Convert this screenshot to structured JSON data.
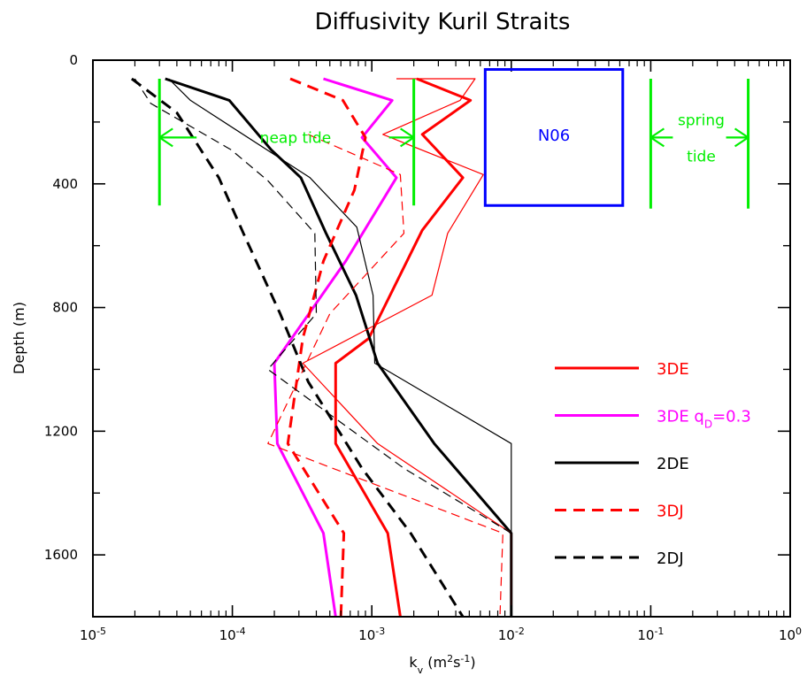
{
  "chart_data": {
    "type": "line",
    "title": "Diffusivity Kuril Straits",
    "xlabel": "k_v (m^2 s^-1)",
    "ylabel": "Depth (m)",
    "xscale": "log",
    "xlim": [
      1e-05,
      1
    ],
    "ylim": [
      0,
      1800
    ],
    "y_inverted": true,
    "x_tick_labels": [
      {
        "value": 1e-05,
        "base": "10",
        "exp": "-5"
      },
      {
        "value": 0.0001,
        "base": "10",
        "exp": "-4"
      },
      {
        "value": 0.001,
        "base": "10",
        "exp": "-3"
      },
      {
        "value": 0.01,
        "base": "10",
        "exp": "-2"
      },
      {
        "value": 0.1,
        "base": "10",
        "exp": "-1"
      },
      {
        "value": 1,
        "base": "10",
        "exp": "0"
      }
    ],
    "y_ticks": [
      0,
      400,
      800,
      1200,
      1600
    ],
    "grid": false,
    "legend_position": "lower-right",
    "series": [
      {
        "name": "3DE",
        "color": "#ff0000",
        "style": "solid",
        "weight": "thick",
        "show_in_legend": true,
        "points": [
          [
            0.0021,
            60
          ],
          [
            0.0051,
            130
          ],
          [
            0.0023,
            240
          ],
          [
            0.0045,
            380
          ],
          [
            0.0023,
            550
          ],
          [
            0.00095,
            900
          ],
          [
            0.00055,
            980
          ],
          [
            0.00055,
            1240
          ],
          [
            0.0013,
            1530
          ],
          [
            0.0016,
            1800
          ]
        ]
      },
      {
        "name": "3DE q_D=0.3",
        "legend_base": "3DE q",
        "legend_sub": "D",
        "legend_tail": "=0.3",
        "color": "#ff00ff",
        "style": "solid",
        "weight": "thick",
        "show_in_legend": true,
        "points": [
          [
            0.00045,
            60
          ],
          [
            0.0014,
            130
          ],
          [
            0.00085,
            250
          ],
          [
            0.0015,
            380
          ],
          [
            0.00065,
            650
          ],
          [
            0.0002,
            980
          ],
          [
            0.00021,
            1240
          ],
          [
            0.00045,
            1530
          ],
          [
            0.00055,
            1800
          ]
        ]
      },
      {
        "name": "2DE",
        "color": "#000000",
        "style": "solid",
        "weight": "thick",
        "show_in_legend": true,
        "points": [
          [
            3.3e-05,
            60
          ],
          [
            9.5e-05,
            130
          ],
          [
            0.00019,
            290
          ],
          [
            0.00031,
            380
          ],
          [
            0.00047,
            560
          ],
          [
            0.00077,
            760
          ],
          [
            0.0011,
            980
          ],
          [
            0.0028,
            1240
          ],
          [
            0.01,
            1530
          ],
          [
            0.01,
            1800
          ]
        ]
      },
      {
        "name": "3DJ",
        "color": "#ff0000",
        "style": "dashed",
        "weight": "thick",
        "show_in_legend": true,
        "points": [
          [
            0.00026,
            60
          ],
          [
            0.00062,
            130
          ],
          [
            0.0009,
            250
          ],
          [
            0.00075,
            420
          ],
          [
            0.00045,
            650
          ],
          [
            0.00032,
            900
          ],
          [
            0.00025,
            1240
          ],
          [
            0.00063,
            1530
          ],
          [
            0.0006,
            1800
          ]
        ]
      },
      {
        "name": "2DJ",
        "color": "#000000",
        "style": "dashed",
        "weight": "thick",
        "show_in_legend": true,
        "points": [
          [
            1.9e-05,
            60
          ],
          [
            4e-05,
            170
          ],
          [
            8e-05,
            380
          ],
          [
            0.00012,
            560
          ],
          [
            0.00022,
            820
          ],
          [
            0.00035,
            1040
          ],
          [
            0.00085,
            1320
          ],
          [
            0.0019,
            1530
          ],
          [
            0.0045,
            1800
          ]
        ]
      },
      {
        "name": "3DE (thin)",
        "color": "#ff0000",
        "style": "solid",
        "weight": "thin",
        "show_in_legend": false,
        "points": [
          [
            0.0015,
            60
          ],
          [
            0.0055,
            60
          ],
          [
            0.0043,
            130
          ],
          [
            0.0012,
            240
          ],
          [
            0.0063,
            370
          ],
          [
            0.0035,
            560
          ],
          [
            0.0027,
            760
          ],
          [
            0.00032,
            980
          ],
          [
            0.0011,
            1240
          ],
          [
            0.01,
            1530
          ],
          [
            0.01,
            1800
          ]
        ]
      },
      {
        "name": "2DE (thin)",
        "color": "#000000",
        "style": "solid",
        "weight": "thin",
        "show_in_legend": false,
        "points": [
          [
            3.5e-05,
            60
          ],
          [
            5e-05,
            130
          ],
          [
            0.00036,
            380
          ],
          [
            0.00078,
            540
          ],
          [
            0.00102,
            760
          ],
          [
            0.00105,
            980
          ],
          [
            0.01,
            1240
          ],
          [
            0.01,
            1800
          ]
        ]
      },
      {
        "name": "3DJ (thin)",
        "color": "#ff0000",
        "style": "dashed",
        "weight": "thin",
        "show_in_legend": false,
        "points": [
          [
            0.00035,
            240
          ],
          [
            0.0016,
            370
          ],
          [
            0.0017,
            560
          ],
          [
            0.0005,
            820
          ],
          [
            0.00018,
            1240
          ],
          [
            0.0087,
            1530
          ],
          [
            0.0083,
            1800
          ]
        ]
      },
      {
        "name": "2DJ (thin)",
        "color": "#000000",
        "style": "dashed",
        "weight": "thin",
        "show_in_legend": false,
        "points": [
          [
            2e-05,
            60
          ],
          [
            2.6e-05,
            140
          ],
          [
            9.8e-05,
            290
          ],
          [
            0.00018,
            390
          ],
          [
            0.00039,
            560
          ],
          [
            0.0004,
            820
          ],
          [
            0.00018,
            1000
          ],
          [
            0.0017,
            1320
          ],
          [
            0.01,
            1530
          ]
        ]
      }
    ],
    "annotations": {
      "neap_tide": {
        "label": "neap tide",
        "color": "#00ee00",
        "left_x": 3e-05,
        "right_x": 0.002,
        "depth_top": 60,
        "depth_bottom": 470,
        "arrow_depth": 250
      },
      "spring_tide": {
        "label_line1": "spring",
        "label_line2": "tide",
        "color": "#00ee00",
        "left_x": 0.1,
        "right_x": 0.5,
        "depth_top": 60,
        "depth_bottom": 480,
        "arrow_depth": 250
      },
      "n06_box": {
        "label": "N06",
        "color": "#0000ff",
        "x_min": 0.0065,
        "x_max": 0.063,
        "depth_top": 30,
        "depth_bottom": 470
      }
    }
  }
}
